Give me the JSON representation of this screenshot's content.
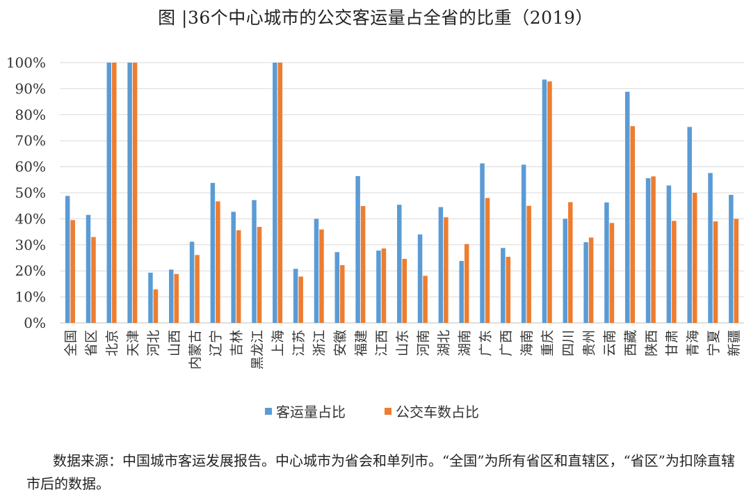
{
  "title": "图 |36个中心城市的公交客运量占全省的比重（2019）",
  "source_note": "数据来源：中国城市客运发展报告。中心城市为省会和单列市。“全国”为所有省区和直辖区，“省区”为扣除直辖市后的数据。",
  "colors": {
    "series1": "#5b9bd5",
    "series2": "#ed7d31",
    "grid": "#d9d9d9",
    "axis": "#bfbfbf",
    "text": "#333333"
  },
  "chart_data": {
    "type": "bar",
    "title": "36个中心城市的公交客运量占全省的比重（2019）",
    "xlabel": "",
    "ylabel": "",
    "ylim": [
      0,
      100
    ],
    "yticks": [
      "0%",
      "10%",
      "20%",
      "30%",
      "40%",
      "50%",
      "60%",
      "70%",
      "80%",
      "90%",
      "100%"
    ],
    "grid": true,
    "legend_position": "bottom",
    "categories": [
      "全国",
      "省区",
      "北京",
      "天津",
      "河北",
      "山西",
      "内蒙古",
      "辽宁",
      "吉林",
      "黑龙江",
      "上海",
      "江苏",
      "浙江",
      "安徽",
      "福建",
      "江西",
      "山东",
      "河南",
      "湖北",
      "湖南",
      "广东",
      "广西",
      "海南",
      "重庆",
      "四川",
      "贵州",
      "云南",
      "西藏",
      "陕西",
      "甘肃",
      "青海",
      "宁夏",
      "新疆"
    ],
    "series": [
      {
        "name": "客运量占比",
        "values": [
          48.8,
          41.5,
          100,
          100,
          19.3,
          20.5,
          31.2,
          53.8,
          42.7,
          47.2,
          100,
          20.8,
          40.0,
          27.2,
          56.4,
          27.8,
          45.4,
          34.0,
          44.5,
          23.8,
          61.3,
          28.8,
          60.8,
          93.5,
          40.0,
          31.0,
          46.3,
          88.8,
          55.6,
          52.8,
          75.3,
          57.6,
          49.2
        ]
      },
      {
        "name": "公交车数占比",
        "values": [
          39.5,
          33.0,
          100,
          100,
          12.9,
          18.8,
          26.1,
          46.7,
          35.6,
          36.9,
          100,
          17.8,
          35.9,
          22.2,
          44.9,
          28.6,
          24.6,
          18.1,
          40.6,
          30.3,
          48.0,
          25.4,
          45.0,
          92.8,
          46.4,
          32.8,
          38.4,
          75.6,
          56.3,
          39.2,
          50.0,
          39.0,
          40.0
        ]
      }
    ]
  }
}
